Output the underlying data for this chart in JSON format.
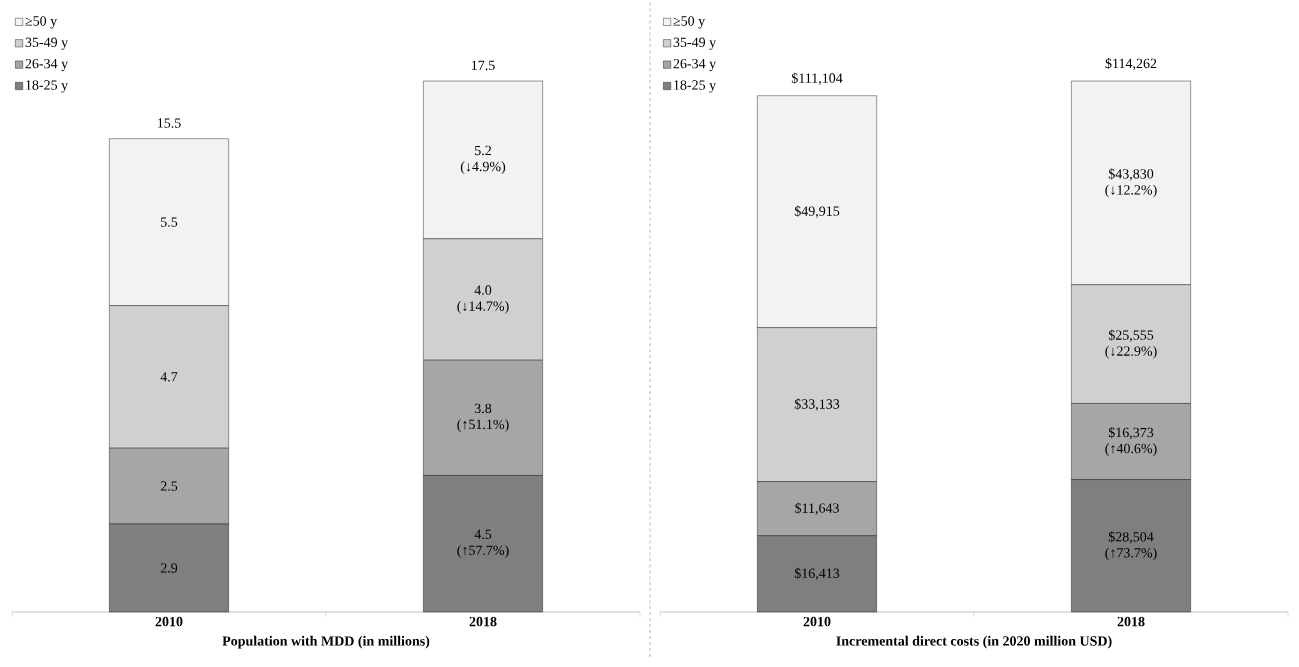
{
  "chart_data": [
    {
      "type": "bar",
      "stacked": true,
      "legend": "top left",
      "categories": [
        "2010",
        "2018"
      ],
      "xlabel": "Population with MDD (in millions)",
      "totals": [
        "15.5",
        "17.5"
      ],
      "series": [
        {
          "name": "18-25 y",
          "color": "#7f7f7f",
          "values": [
            2.9,
            4.5
          ],
          "value_labels": [
            "2.9",
            "4.5 (↑57.7%)"
          ]
        },
        {
          "name": "26-34 y",
          "color": "#a6a6a6",
          "values": [
            2.5,
            3.8
          ],
          "value_labels": [
            "2.5",
            "3.8 (↑51.1%)"
          ]
        },
        {
          "name": "35-49 y",
          "color": "#d0d0d0",
          "values": [
            4.7,
            4.0
          ],
          "value_labels": [
            "4.7",
            "4.0 (↓14.7%)"
          ]
        },
        {
          "name": "≥50 y",
          "color": "#f2f2f2",
          "values": [
            5.5,
            5.2
          ],
          "value_labels": [
            "5.5",
            "5.2 (↓4.9%)"
          ]
        }
      ]
    },
    {
      "type": "bar",
      "stacked": true,
      "legend": "top left",
      "categories": [
        "2010",
        "2018"
      ],
      "xlabel": "Incremental direct costs (in 2020 million USD)",
      "totals": [
        "$111,104",
        "$114,262"
      ],
      "series": [
        {
          "name": "18-25 y",
          "color": "#7f7f7f",
          "values": [
            16413,
            28504
          ],
          "value_labels": [
            "$16,413",
            "$28,504 (↑73.7%)"
          ]
        },
        {
          "name": "26-34 y",
          "color": "#a6a6a6",
          "values": [
            11643,
            16373
          ],
          "value_labels": [
            "$11,643",
            "$16,373 (↑40.6%)"
          ]
        },
        {
          "name": "35-49 y",
          "color": "#d0d0d0",
          "values": [
            33133,
            25555
          ],
          "value_labels": [
            "$33,133",
            "$25,555 (↓22.9%)"
          ]
        },
        {
          "name": "≥50 y",
          "color": "#f2f2f2",
          "values": [
            49915,
            43830
          ],
          "value_labels": [
            "$49,915",
            "$43,830 (↓12.2%)"
          ]
        }
      ]
    }
  ]
}
